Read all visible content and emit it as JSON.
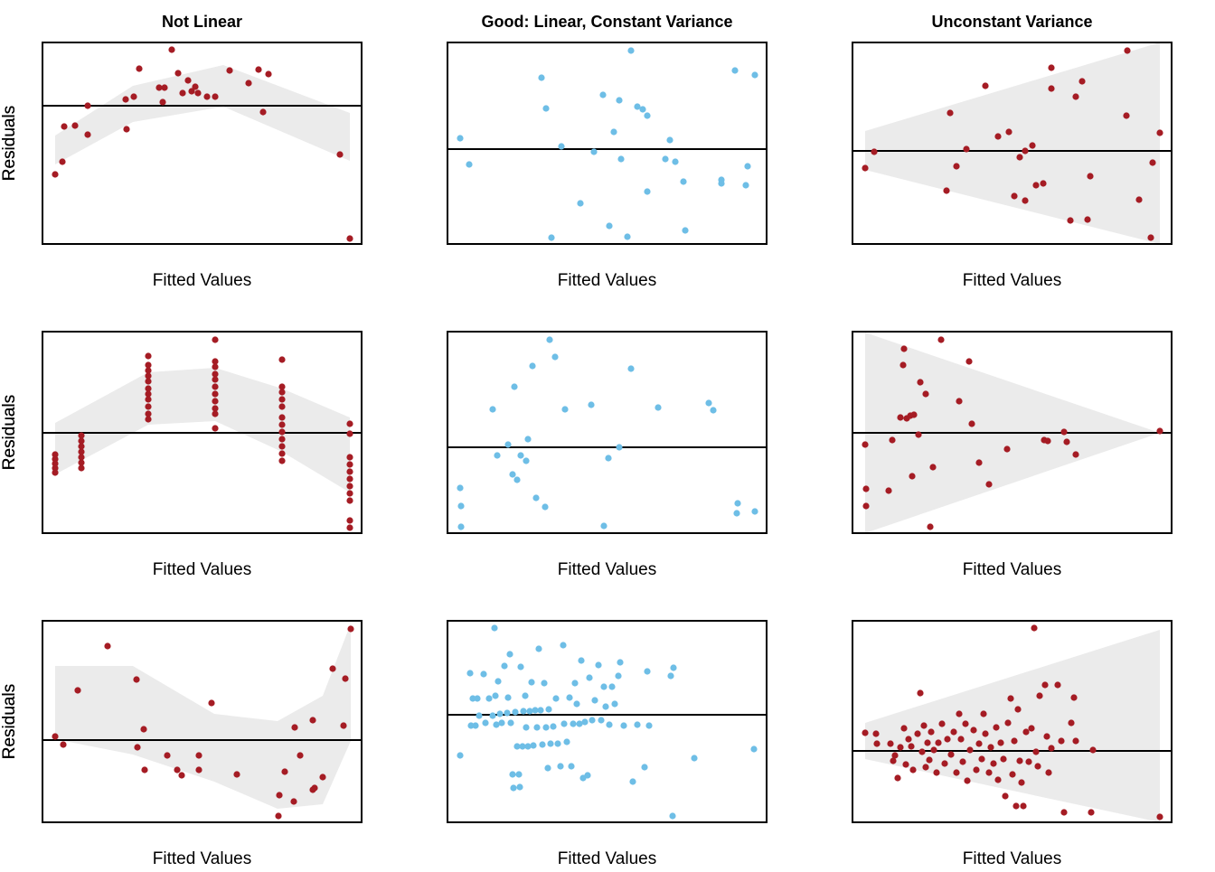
{
  "chart_data": [
    {
      "type": "scatter",
      "title": "Not Linear",
      "xlabel": "Fitted Values",
      "ylabel": "Residuals",
      "color": "#a51c24",
      "xlim": [
        0,
        353
      ],
      "ylim": [
        0,
        223
      ],
      "hline": 153,
      "band": {
        "color": "#ebebeb",
        "x": [
          14,
          100,
          200,
          340
        ],
        "upper": [
          120,
          175,
          198,
          145
        ],
        "lower": [
          88,
          135,
          152,
          92
        ]
      },
      "x": [
        14,
        22,
        24,
        36,
        50,
        50,
        92,
        93,
        101,
        107,
        129,
        133,
        135,
        143,
        150,
        155,
        161,
        165,
        169,
        172,
        182,
        191,
        207,
        228,
        239,
        244,
        250,
        329,
        340
      ],
      "values": [
        77,
        91,
        130,
        131,
        153,
        121,
        160,
        127,
        163,
        194,
        173,
        157,
        173,
        215,
        189,
        167,
        181,
        169,
        174,
        167,
        163,
        163,
        192,
        178,
        193,
        146,
        188,
        99,
        6
      ]
    },
    {
      "type": "scatter",
      "title": "Good: Linear, Constant Variance",
      "xlabel": "Fitted Values",
      "ylabel": "Residuals",
      "color": "#6ebee6",
      "xlim": [
        0,
        353
      ],
      "ylim": [
        0,
        223
      ],
      "hline": 105,
      "x": [
        14,
        24,
        104,
        109,
        115,
        126,
        147,
        162,
        172,
        179,
        184,
        190,
        192,
        199,
        203,
        210,
        216,
        221,
        221,
        241,
        246,
        252,
        261,
        263,
        303,
        303,
        318,
        330,
        332,
        340
      ],
      "values": [
        117,
        88,
        184,
        150,
        7,
        108,
        45,
        102,
        165,
        20,
        124,
        159,
        94,
        8,
        214,
        152,
        149,
        142,
        58,
        94,
        115,
        91,
        69,
        15,
        71,
        67,
        192,
        65,
        86,
        187
      ]
    },
    {
      "type": "scatter",
      "title": "Unconstant Variance",
      "xlabel": "Fitted Values",
      "ylabel": "Residuals",
      "color": "#a51c24",
      "xlim": [
        0,
        353
      ],
      "ylim": [
        0,
        223
      ],
      "hline": 103,
      "band": {
        "color": "#ebebeb",
        "x": [
          14,
          340
        ],
        "upper": [
          125,
          223
        ],
        "lower": [
          82,
          0
        ]
      },
      "x": [
        14,
        24,
        104,
        108,
        115,
        126,
        147,
        161,
        173,
        179,
        185,
        191,
        191,
        199,
        203,
        211,
        220,
        220,
        241,
        247,
        254,
        260,
        263,
        303,
        304,
        317,
        330,
        332,
        340
      ],
      "values": [
        84,
        102,
        59,
        145,
        86,
        105,
        175,
        119,
        124,
        53,
        96,
        48,
        103,
        109,
        65,
        67,
        195,
        172,
        26,
        163,
        180,
        27,
        75,
        142,
        214,
        49,
        7,
        90,
        123
      ]
    },
    {
      "type": "scatter",
      "xlabel": "Fitted Values",
      "ylabel": "Residuals",
      "color": "#a51c24",
      "xlim": [
        0,
        353
      ],
      "ylim": [
        0,
        223
      ],
      "hline": 111,
      "band": {
        "color": "#ebebeb",
        "x": [
          14,
          117,
          191,
          265,
          340
        ],
        "upper": [
          122,
          178,
          183,
          160,
          128
        ],
        "lower": [
          65,
          120,
          124,
          90,
          45
        ]
      },
      "x": [
        14,
        14,
        14,
        14,
        14,
        43,
        43,
        43,
        43,
        43,
        43,
        43,
        117,
        117,
        117,
        117,
        117,
        117,
        117,
        117,
        117,
        117,
        117,
        191,
        191,
        191,
        191,
        191,
        191,
        191,
        191,
        191,
        191,
        191,
        265,
        265,
        265,
        265,
        265,
        265,
        265,
        265,
        265,
        265,
        265,
        265,
        340,
        340,
        340,
        340,
        340,
        340,
        340,
        340,
        340,
        340,
        340
      ],
      "values": [
        87,
        82,
        77,
        72,
        67,
        108,
        102,
        96,
        90,
        84,
        78,
        72,
        196,
        186,
        180,
        174,
        168,
        160,
        154,
        148,
        140,
        132,
        126,
        214,
        190,
        184,
        176,
        170,
        162,
        154,
        146,
        138,
        132,
        116,
        192,
        162,
        156,
        148,
        140,
        128,
        120,
        112,
        104,
        96,
        88,
        80,
        121,
        110,
        84,
        76,
        68,
        60,
        52,
        44,
        36,
        14,
        6
      ]
    },
    {
      "type": "scatter",
      "xlabel": "Fitted Values",
      "ylabel": "Residuals",
      "color": "#6ebee6",
      "xlim": [
        0,
        353
      ],
      "ylim": [
        0,
        223
      ],
      "hline": 95,
      "x": [
        14,
        15,
        15,
        50,
        55,
        67,
        72,
        74,
        77,
        81,
        87,
        89,
        94,
        98,
        108,
        113,
        119,
        130,
        159,
        173,
        178,
        190,
        203,
        233,
        289,
        294,
        321,
        320,
        340
      ],
      "values": [
        50,
        30,
        7,
        137,
        86,
        98,
        65,
        162,
        59,
        86,
        80,
        104,
        185,
        39,
        29,
        214,
        195,
        137,
        142,
        8,
        83,
        95,
        182,
        139,
        144,
        136,
        33,
        22,
        24
      ]
    },
    {
      "type": "scatter",
      "xlabel": "Fitted Values",
      "ylabel": "Residuals",
      "color": "#a51c24",
      "xlim": [
        0,
        353
      ],
      "ylim": [
        0,
        223
      ],
      "hline": 111,
      "band": {
        "color": "#ebebeb",
        "x": [
          14,
          340
        ],
        "upper": [
          222,
          111
        ],
        "lower": [
          0,
          111
        ]
      },
      "x": [
        14,
        15,
        15,
        40,
        44,
        53,
        56,
        57,
        60,
        64,
        68,
        66,
        73,
        75,
        81,
        86,
        89,
        98,
        118,
        129,
        132,
        140,
        151,
        171,
        212,
        216,
        234,
        237,
        247,
        340
      ],
      "values": [
        98,
        49,
        30,
        47,
        103,
        128,
        186,
        204,
        127,
        130,
        131,
        63,
        109,
        167,
        154,
        7,
        73,
        214,
        146,
        190,
        121,
        78,
        54,
        93,
        103,
        102,
        112,
        101,
        87,
        113
      ]
    },
    {
      "type": "scatter",
      "xlabel": "Fitted Values",
      "ylabel": "Residuals",
      "color": "#a51c24",
      "xlim": [
        0,
        353
      ],
      "ylim": [
        0,
        223
      ],
      "hline": 91,
      "band": {
        "color": "#ebebeb",
        "x": [
          14,
          100,
          190,
          260,
          310,
          341
        ],
        "upper": [
          173,
          173,
          120,
          112,
          140,
          220
        ],
        "lower": [
          92,
          75,
          45,
          15,
          20,
          90
        ]
      },
      "x": [
        14,
        23,
        39,
        72,
        104,
        105,
        112,
        113,
        138,
        149,
        154,
        173,
        173,
        187,
        215,
        261,
        268,
        262,
        278,
        279,
        285,
        299,
        299,
        301,
        310,
        321,
        333,
        335,
        341
      ],
      "values": [
        95,
        86,
        146,
        195,
        158,
        83,
        103,
        58,
        74,
        58,
        52,
        74,
        58,
        132,
        53,
        7,
        56,
        30,
        23,
        105,
        74,
        113,
        36,
        38,
        50,
        170,
        107,
        159,
        214
      ]
    },
    {
      "type": "scatter",
      "xlabel": "Fitted Values",
      "ylabel": "Residuals",
      "color": "#6ebee6",
      "xlim": [
        0,
        353
      ],
      "ylim": [
        0,
        223
      ],
      "hline": 119,
      "x": [
        14,
        25,
        26,
        28,
        31,
        33,
        35,
        40,
        42,
        46,
        50,
        52,
        53,
        54,
        56,
        58,
        60,
        63,
        66,
        67,
        69,
        70,
        72,
        73,
        75,
        77,
        79,
        80,
        81,
        83,
        84,
        86,
        87,
        89,
        91,
        93,
        95,
        97,
        99,
        101,
        103,
        105,
        107,
        109,
        111,
        112,
        114,
        117,
        120,
        122,
        125,
        128,
        129,
        132,
        135,
        137,
        139,
        141,
        143,
        146,
        148,
        150,
        152,
        155,
        157,
        160,
        163,
        167,
        170,
        173,
        175,
        179,
        182,
        185,
        189,
        191,
        195,
        205,
        210,
        218,
        221,
        223,
        247,
        249,
        250,
        273,
        339
      ],
      "values": [
        74,
        165,
        107,
        137,
        107,
        137,
        118,
        164,
        110,
        137,
        118,
        215,
        140,
        108,
        156,
        120,
        110,
        173,
        121,
        138,
        186,
        110,
        53,
        38,
        122,
        84,
        53,
        39,
        172,
        84,
        123,
        140,
        105,
        84,
        123,
        155,
        85,
        124,
        105,
        192,
        124,
        86,
        154,
        105,
        60,
        125,
        87,
        106,
        137,
        87,
        62,
        196,
        109,
        89,
        138,
        62,
        109,
        154,
        131,
        109,
        179,
        49,
        111,
        52,
        160,
        113,
        135,
        174,
        113,
        150,
        128,
        108,
        150,
        131,
        162,
        177,
        107,
        45,
        108,
        61,
        167,
        107,
        162,
        7,
        171,
        71,
        81
      ]
    },
    {
      "type": "scatter",
      "xlabel": "Fitted Values",
      "ylabel": "Residuals",
      "color": "#a51c24",
      "xlim": [
        0,
        353
      ],
      "ylim": [
        0,
        223
      ],
      "hline": 79,
      "band": {
        "color": "#ebebeb",
        "x": [
          14,
          340
        ],
        "upper": [
          110,
          213
        ],
        "lower": [
          70,
          0
        ]
      },
      "x": [
        14,
        26,
        27,
        42,
        45,
        47,
        50,
        53,
        57,
        59,
        62,
        65,
        67,
        72,
        75,
        77,
        79,
        81,
        83,
        85,
        87,
        90,
        93,
        95,
        99,
        102,
        105,
        109,
        112,
        115,
        118,
        120,
        122,
        125,
        127,
        130,
        134,
        137,
        140,
        143,
        145,
        147,
        151,
        153,
        156,
        159,
        161,
        164,
        167,
        169,
        172,
        175,
        177,
        179,
        181,
        183,
        185,
        187,
        189,
        192,
        195,
        198,
        201,
        203,
        205,
        207,
        213,
        215,
        217,
        220,
        227,
        231,
        234,
        242,
        245,
        247,
        264,
        266,
        340
      ],
      "values": [
        99,
        98,
        87,
        87,
        68,
        74,
        49,
        83,
        104,
        64,
        92,
        84,
        58,
        98,
        143,
        78,
        107,
        61,
        88,
        69,
        100,
        80,
        55,
        88,
        109,
        65,
        92,
        75,
        100,
        55,
        120,
        92,
        67,
        109,
        46,
        80,
        102,
        58,
        87,
        70,
        120,
        98,
        55,
        83,
        65,
        105,
        47,
        88,
        70,
        29,
        110,
        137,
        53,
        90,
        18,
        125,
        68,
        44,
        18,
        100,
        67,
        104,
        215,
        78,
        62,
        140,
        152,
        95,
        55,
        82,
        152,
        90,
        11,
        110,
        138,
        90,
        11,
        80,
        6
      ]
    }
  ]
}
